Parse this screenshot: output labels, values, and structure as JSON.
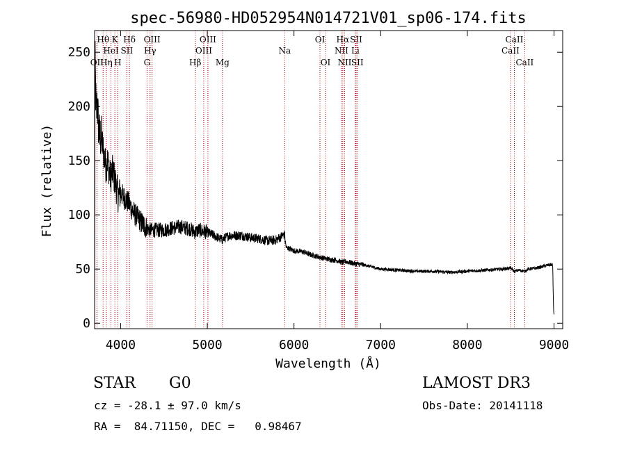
{
  "chart_data": {
    "type": "line",
    "title": "spec-56980-HD052954N014721V01_sp06-174.fits",
    "xlabel": "Wavelength (Å)",
    "ylabel": "Flux (relative)",
    "xlim": [
      3700,
      9100
    ],
    "ylim": [
      -5,
      270
    ],
    "xticks": [
      4000,
      5000,
      6000,
      7000,
      8000,
      9000
    ],
    "yticks": [
      0,
      50,
      100,
      150,
      200,
      250
    ],
    "grid": false,
    "series": [
      {
        "name": "spectrum",
        "anchors": [
          [
            3700,
            5
          ],
          [
            3705,
            245
          ],
          [
            3712,
            215
          ],
          [
            3720,
            190
          ],
          [
            3730,
            205
          ],
          [
            3750,
            175
          ],
          [
            3780,
            170
          ],
          [
            3800,
            160
          ],
          [
            3830,
            145
          ],
          [
            3850,
            150
          ],
          [
            3880,
            135
          ],
          [
            3910,
            140
          ],
          [
            3940,
            130
          ],
          [
            3970,
            118
          ],
          [
            4000,
            120
          ],
          [
            4050,
            115
          ],
          [
            4100,
            110
          ],
          [
            4150,
            102
          ],
          [
            4200,
            97
          ],
          [
            4250,
            92
          ],
          [
            4300,
            88
          ],
          [
            4340,
            86
          ],
          [
            4400,
            86
          ],
          [
            4500,
            86
          ],
          [
            4600,
            88
          ],
          [
            4700,
            89
          ],
          [
            4800,
            87
          ],
          [
            4860,
            84
          ],
          [
            4900,
            86
          ],
          [
            5000,
            84
          ],
          [
            5100,
            80
          ],
          [
            5170,
            77
          ],
          [
            5250,
            81
          ],
          [
            5400,
            81
          ],
          [
            5500,
            79
          ],
          [
            5600,
            78
          ],
          [
            5700,
            76
          ],
          [
            5800,
            77
          ],
          [
            5850,
            80
          ],
          [
            5890,
            82
          ],
          [
            5910,
            70
          ],
          [
            6000,
            67
          ],
          [
            6100,
            66
          ],
          [
            6200,
            63
          ],
          [
            6300,
            61
          ],
          [
            6400,
            59
          ],
          [
            6500,
            58
          ],
          [
            6560,
            56
          ],
          [
            6600,
            57
          ],
          [
            6700,
            55
          ],
          [
            6800,
            54
          ],
          [
            6900,
            52
          ],
          [
            7000,
            50
          ],
          [
            7200,
            49
          ],
          [
            7400,
            48
          ],
          [
            7600,
            48
          ],
          [
            7800,
            47
          ],
          [
            8000,
            48
          ],
          [
            8200,
            49
          ],
          [
            8400,
            50
          ],
          [
            8500,
            51
          ],
          [
            8540,
            48
          ],
          [
            8600,
            49
          ],
          [
            8662,
            48
          ],
          [
            8700,
            50
          ],
          [
            8800,
            51
          ],
          [
            8900,
            53
          ],
          [
            8950,
            54
          ],
          [
            8980,
            54
          ],
          [
            8985,
            52
          ],
          [
            8990,
            30
          ],
          [
            8995,
            12
          ],
          [
            9000,
            8
          ]
        ]
      }
    ],
    "lines": [
      {
        "label": "OII",
        "wavelength": 3727,
        "row": 3
      },
      {
        "label": "Hθ",
        "wavelength": 3798,
        "row": 1
      },
      {
        "label": "HeI",
        "wavelength": 3889,
        "row": 2
      },
      {
        "label": "Hη",
        "wavelength": 3835,
        "row": 3
      },
      {
        "label": "K",
        "wavelength": 3934,
        "row": 1
      },
      {
        "label": "H",
        "wavelength": 3968,
        "row": 3
      },
      {
        "label": "SII",
        "wavelength": 4072,
        "row": 2
      },
      {
        "label": "Hδ",
        "wavelength": 4102,
        "row": 1
      },
      {
        "label": "OIII",
        "wavelength": 4363,
        "row": 1
      },
      {
        "label": "Hγ",
        "wavelength": 4340,
        "row": 2
      },
      {
        "label": "G",
        "wavelength": 4305,
        "row": 3
      },
      {
        "label": "Hβ",
        "wavelength": 4861,
        "row": 3
      },
      {
        "label": "OIII",
        "wavelength": 4959,
        "row": 2
      },
      {
        "label": "OIII",
        "wavelength": 5007,
        "row": 1
      },
      {
        "label": "Mg",
        "wavelength": 5175,
        "row": 3
      },
      {
        "label": "Na",
        "wavelength": 5893,
        "row": 2
      },
      {
        "label": "OI",
        "wavelength": 6300,
        "row": 1
      },
      {
        "label": "OI",
        "wavelength": 6364,
        "row": 3
      },
      {
        "label": "NII",
        "wavelength": 6548,
        "row": 2
      },
      {
        "label": "Hα",
        "wavelength": 6563,
        "row": 1
      },
      {
        "label": "NII",
        "wavelength": 6584,
        "row": 3
      },
      {
        "label": "SII",
        "wavelength": 6717,
        "row": 1
      },
      {
        "label": "Li",
        "wavelength": 6708,
        "row": 2
      },
      {
        "label": "SII",
        "wavelength": 6731,
        "row": 3
      },
      {
        "label": "CaII",
        "wavelength": 8498,
        "row": 2
      },
      {
        "label": "CaII",
        "wavelength": 8542,
        "row": 1
      },
      {
        "label": "CaII",
        "wavelength": 8662,
        "row": 3
      }
    ]
  },
  "info": {
    "class": "STAR",
    "subclass": "G0",
    "survey": "LAMOST DR3",
    "cz": "cz = -28.1 ± 97.0 km/s",
    "obs_date": "Obs-Date: 20141118",
    "radec": "RA =  84.71150, DEC =   0.98467"
  }
}
